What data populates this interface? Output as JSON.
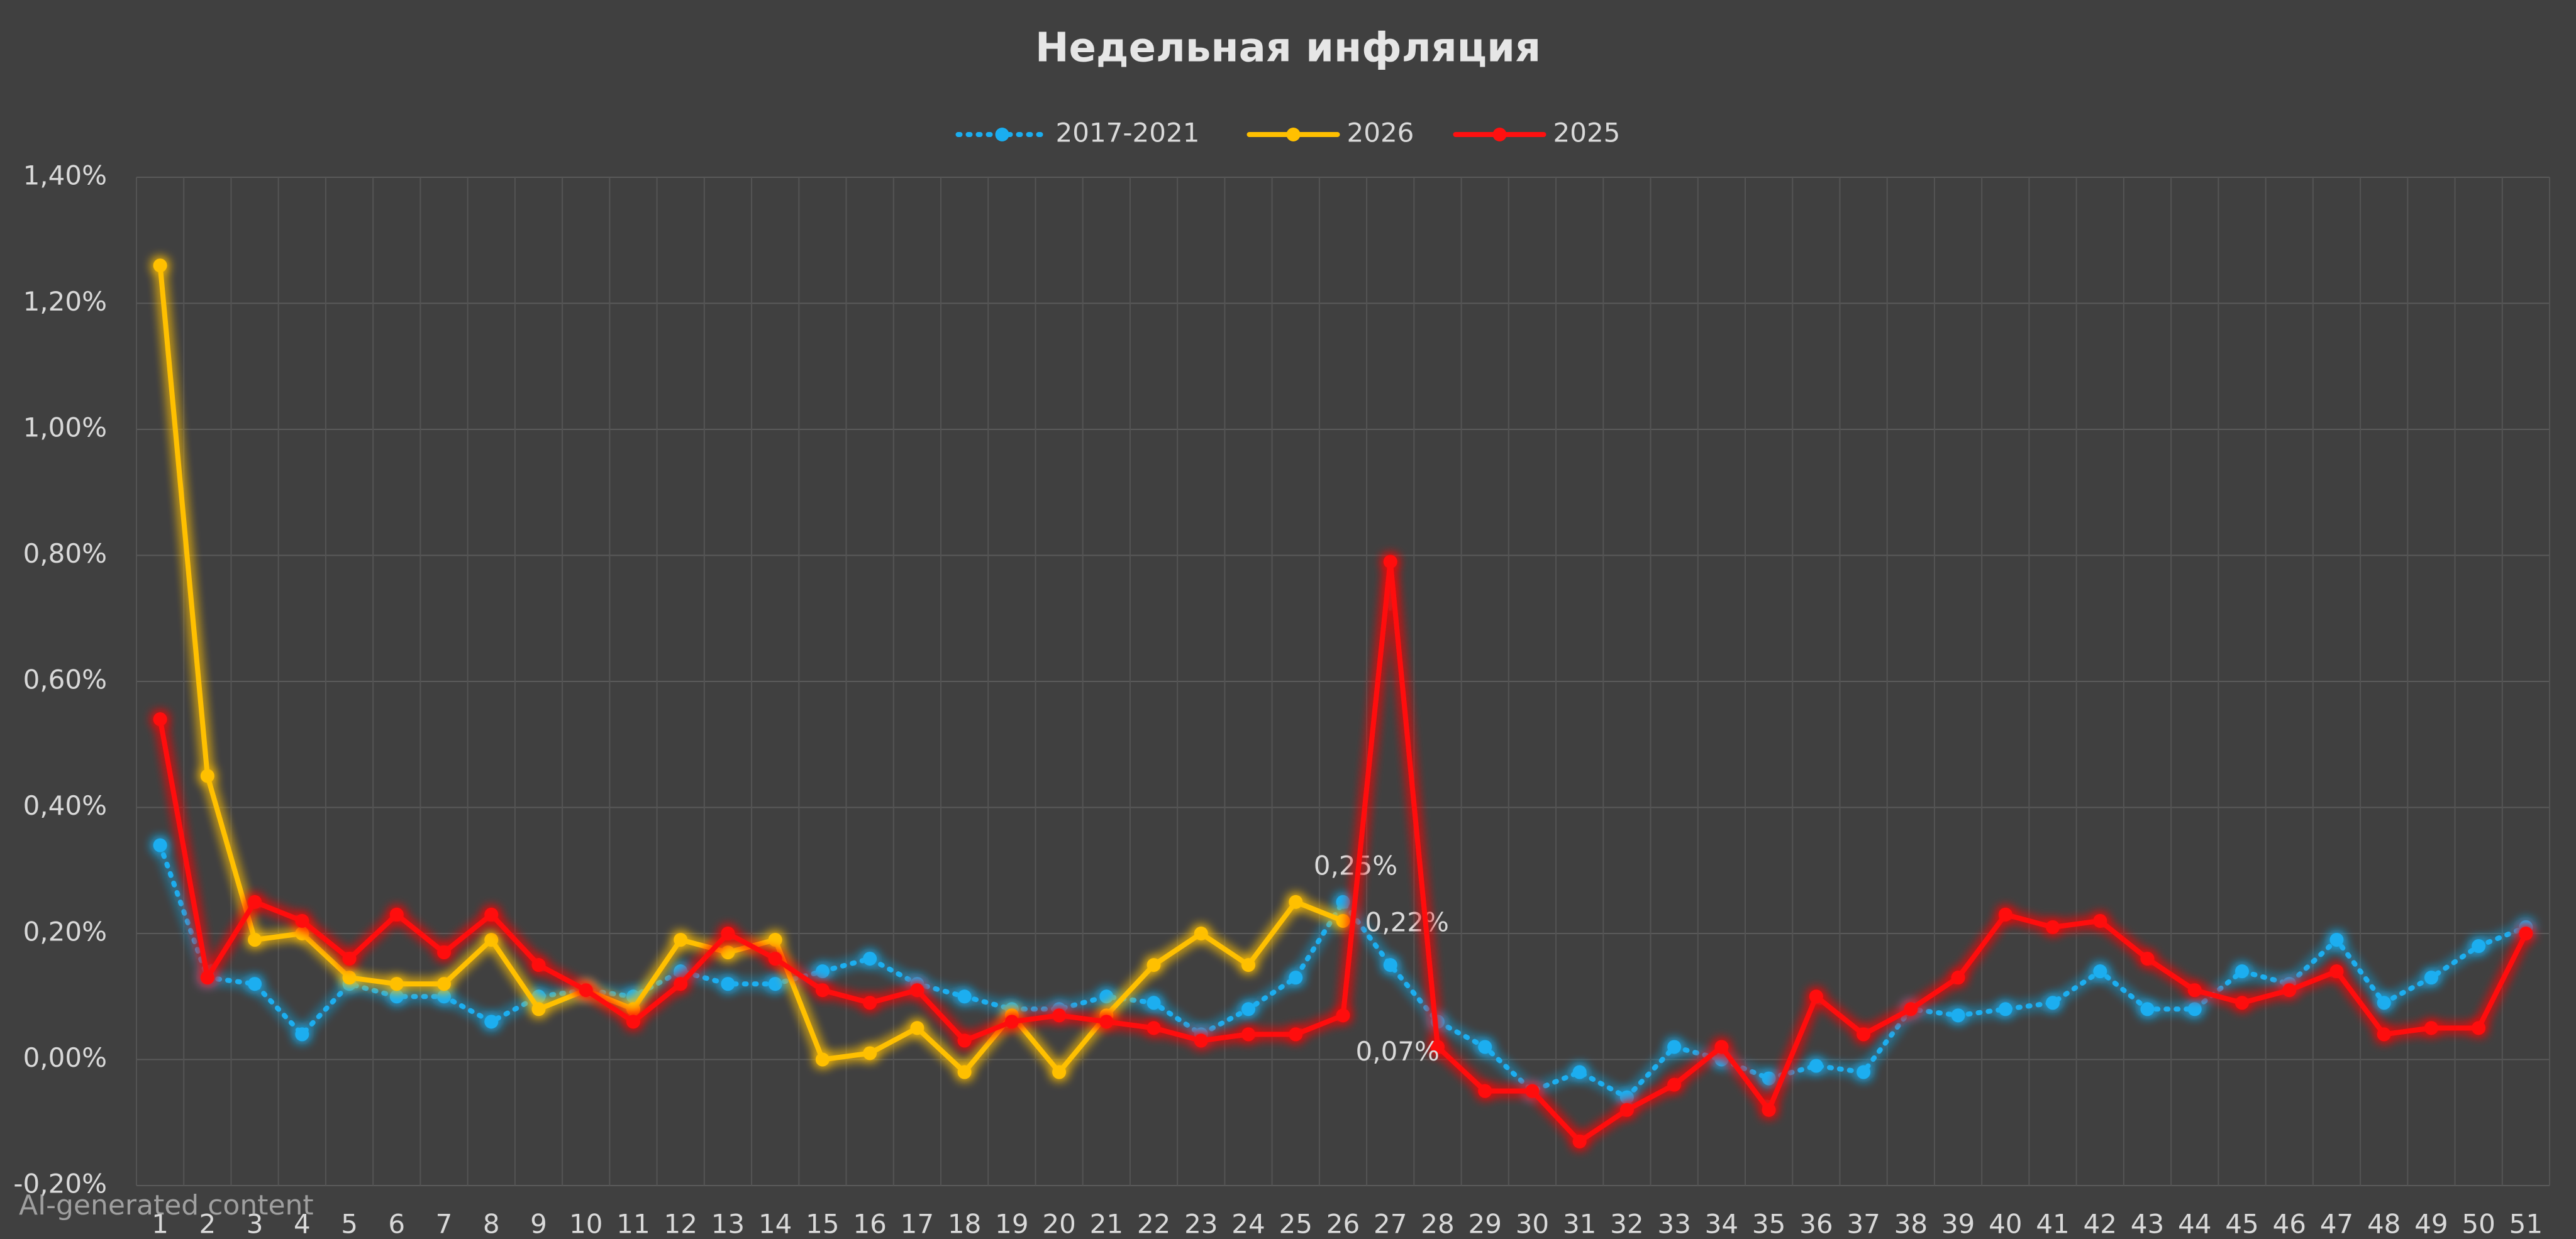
{
  "chart_data": {
    "type": "line",
    "title": "Недельная инфляция",
    "watermark": "AI-generated content",
    "categories": [
      "1",
      "2",
      "3",
      "4",
      "5",
      "6",
      "7",
      "8",
      "9",
      "10",
      "11",
      "12",
      "13",
      "14",
      "15",
      "16",
      "17",
      "18",
      "19",
      "20",
      "21",
      "22",
      "23",
      "24",
      "25",
      "26",
      "27",
      "28",
      "29",
      "30",
      "31",
      "32",
      "33",
      "34",
      "35",
      "36",
      "37",
      "38",
      "39",
      "40",
      "41",
      "42",
      "43",
      "44",
      "45",
      "46",
      "47",
      "48",
      "49",
      "50",
      "51"
    ],
    "series": [
      {
        "name": "2017-2021",
        "color": "#1aaef0",
        "dash": "dotted",
        "label_position": "above",
        "values": [
          0.34,
          0.13,
          0.12,
          0.04,
          0.12,
          0.1,
          0.1,
          0.06,
          0.1,
          0.11,
          0.1,
          0.14,
          0.12,
          0.12,
          0.14,
          0.16,
          0.12,
          0.1,
          0.08,
          0.08,
          0.1,
          0.09,
          0.04,
          0.08,
          0.13,
          0.25,
          0.15,
          0.06,
          0.02,
          -0.05,
          -0.02,
          -0.06,
          0.02,
          0.0,
          -0.03,
          -0.01,
          -0.02,
          0.08,
          0.07,
          0.08,
          0.09,
          0.14,
          0.08,
          0.08,
          0.14,
          0.12,
          0.19,
          0.09,
          0.13,
          0.18,
          0.21
        ],
        "value_labels": [
          null,
          null,
          null,
          null,
          null,
          null,
          null,
          null,
          null,
          null,
          null,
          null,
          null,
          null,
          null,
          null,
          null,
          null,
          null,
          null,
          null,
          null,
          null,
          null,
          null,
          "0,25%",
          null,
          null,
          null,
          null,
          null,
          null,
          null,
          null,
          null,
          null,
          null,
          null,
          null,
          null,
          null,
          null,
          null,
          null,
          null,
          null,
          null,
          null,
          null,
          null,
          null
        ]
      },
      {
        "name": "2026",
        "color": "#ffc000",
        "dash": "solid",
        "label_position": "right",
        "values": [
          1.26,
          0.45,
          0.19,
          0.2,
          0.13,
          0.12,
          0.12,
          0.19,
          0.08,
          0.11,
          0.08,
          0.19,
          0.17,
          0.19,
          0.0,
          0.01,
          0.05,
          -0.02,
          0.07,
          -0.02,
          0.07,
          0.15,
          0.2,
          0.15,
          0.25,
          0.22,
          null,
          null,
          null,
          null,
          null,
          null,
          null,
          null,
          null,
          null,
          null,
          null,
          null,
          null,
          null,
          null,
          null,
          null,
          null,
          null,
          null,
          null,
          null,
          null,
          null
        ],
        "value_labels": [
          null,
          null,
          null,
          null,
          null,
          null,
          null,
          null,
          null,
          null,
          null,
          null,
          null,
          null,
          null,
          null,
          null,
          null,
          null,
          null,
          null,
          null,
          null,
          null,
          null,
          "0,22%",
          null,
          null,
          null,
          null,
          null,
          null,
          null,
          null,
          null,
          null,
          null,
          null,
          null,
          null,
          null,
          null,
          null,
          null,
          null,
          null,
          null,
          null,
          null,
          null,
          null
        ]
      },
      {
        "name": "2025",
        "color": "#ff1010",
        "dash": "solid",
        "label_position": "below",
        "values": [
          0.54,
          0.13,
          0.25,
          0.22,
          0.16,
          0.23,
          0.17,
          0.23,
          0.15,
          0.11,
          0.06,
          0.12,
          0.2,
          0.16,
          0.11,
          0.09,
          0.11,
          0.03,
          0.06,
          0.07,
          0.06,
          0.05,
          0.03,
          0.04,
          0.04,
          0.07,
          0.79,
          0.02,
          -0.05,
          -0.05,
          -0.13,
          -0.08,
          -0.04,
          0.02,
          -0.08,
          0.1,
          0.04,
          0.08,
          0.13,
          0.23,
          0.21,
          0.22,
          0.16,
          0.11,
          0.09,
          0.11,
          0.14,
          0.04,
          0.05,
          0.05,
          0.2
        ],
        "value_labels": [
          null,
          null,
          null,
          null,
          null,
          null,
          null,
          null,
          null,
          null,
          null,
          null,
          null,
          null,
          null,
          null,
          null,
          null,
          null,
          null,
          null,
          null,
          null,
          null,
          null,
          "0,07%",
          null,
          null,
          null,
          null,
          null,
          null,
          null,
          null,
          null,
          null,
          null,
          null,
          null,
          null,
          null,
          null,
          null,
          null,
          null,
          null,
          null,
          null,
          null,
          null,
          null
        ]
      }
    ],
    "ylim": [
      -0.2,
      1.4
    ],
    "yticks": [
      {
        "value": -0.2,
        "label": "-0,20%"
      },
      {
        "value": 0,
        "label": "0,00%"
      },
      {
        "value": 0.2,
        "label": "0,20%"
      },
      {
        "value": 0.4,
        "label": "0,40%"
      },
      {
        "value": 0.6,
        "label": "0,60%"
      },
      {
        "value": 0.8,
        "label": "0,80%"
      },
      {
        "value": 1.0,
        "label": "1,00%"
      },
      {
        "value": 1.2,
        "label": "1,20%"
      },
      {
        "value": 1.4,
        "label": "1,40%"
      }
    ],
    "grid": true,
    "legend": "top"
  }
}
